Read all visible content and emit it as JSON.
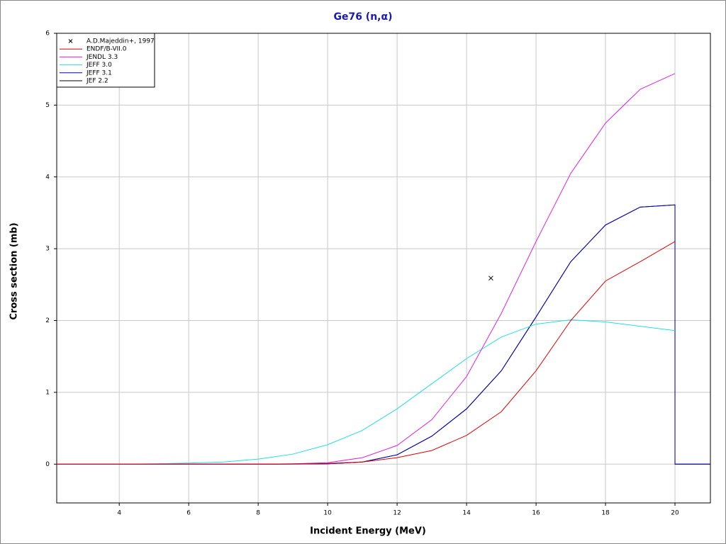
{
  "chart_data": {
    "type": "line",
    "title": "Ge76 (n,α)",
    "x_label": "Incident Energy (MeV)",
    "y_label": "Cross section (mb)",
    "xlim": [
      2.2,
      21.02
    ],
    "ylim": [
      -0.54,
      6
    ],
    "xticks": [
      4,
      6,
      8,
      10,
      12,
      14,
      16,
      18,
      20
    ],
    "yticks": [
      0,
      1,
      2,
      3,
      4,
      5,
      6
    ],
    "grid": true,
    "legend": "upper-left",
    "x": [
      2.2,
      4,
      5,
      6,
      7,
      8,
      9,
      10,
      11,
      12,
      13,
      14,
      15,
      16,
      17,
      18,
      19,
      20,
      20,
      21.02
    ],
    "series": [
      {
        "name": "A.D.Majeddin+, 1997",
        "type": "scatter",
        "color": "#000000",
        "x": [
          14.7
        ],
        "values": [
          2.59
        ]
      },
      {
        "name": "ENDF/B-VII.0",
        "color": "#e00000",
        "values": [
          0,
          0,
          0,
          0,
          0,
          0,
          0.003,
          0.01,
          0.03,
          0.09,
          0.19,
          0.4,
          0.73,
          1.3,
          2.0,
          2.55,
          2.82,
          3.1,
          null,
          null
        ]
      },
      {
        "name": "JENDL 3.3",
        "color": "#e020e0",
        "values": [
          0,
          0,
          0,
          0,
          0,
          0,
          0.005,
          0.02,
          0.09,
          0.26,
          0.62,
          1.22,
          2.1,
          3.1,
          4.05,
          4.75,
          5.22,
          5.44,
          null,
          null
        ]
      },
      {
        "name": "JEFF 3.0",
        "color": "#20e0e0",
        "values": [
          0,
          0,
          0.005,
          0.015,
          0.03,
          0.07,
          0.14,
          0.27,
          0.47,
          0.77,
          1.12,
          1.47,
          1.77,
          1.95,
          2.01,
          1.98,
          1.92,
          1.86,
          null,
          null
        ]
      },
      {
        "name": "JEFF 3.1",
        "color": "#0000c0",
        "values": [
          0,
          0,
          0,
          0,
          0,
          0,
          0.001,
          0.005,
          0.03,
          0.13,
          0.39,
          0.77,
          1.3,
          2.05,
          2.82,
          3.33,
          3.58,
          3.61,
          0,
          0
        ]
      },
      {
        "name": "JEF 2.2",
        "color": "#000000",
        "values": [
          0,
          0,
          0,
          0,
          0,
          0,
          0.001,
          0.005,
          0.03,
          0.13,
          0.39,
          0.77,
          1.3,
          2.05,
          2.82,
          3.33,
          3.58,
          3.61,
          0,
          0
        ]
      }
    ]
  }
}
